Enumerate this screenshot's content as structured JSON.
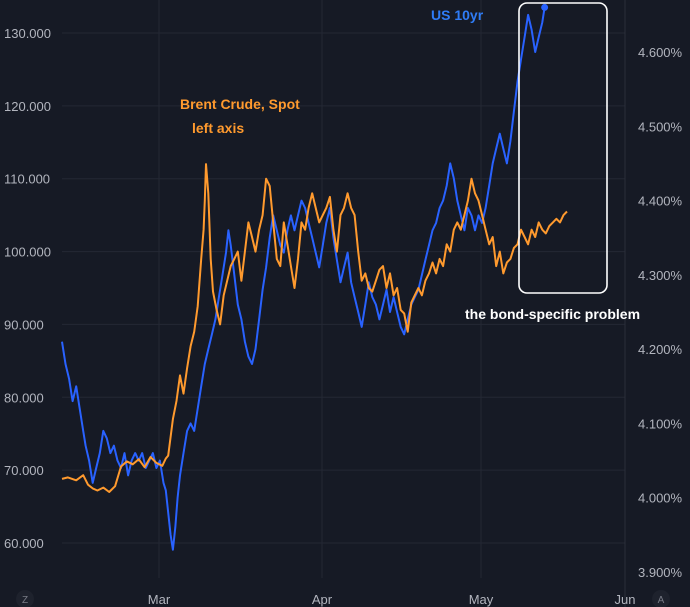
{
  "chart_data": {
    "type": "line",
    "x_labels": [
      "Mar",
      "Apr",
      "May",
      "Jun"
    ],
    "y_left": {
      "ticks": [
        "60.000",
        "70.000",
        "80.000",
        "90.000",
        "100.000",
        "110.000",
        "120.000",
        "130.000"
      ],
      "range": [
        57,
        134
      ]
    },
    "y_right": {
      "ticks": [
        "3.900%",
        "4.000%",
        "4.100%",
        "4.200%",
        "4.300%",
        "4.400%",
        "4.500%",
        "4.600%"
      ],
      "range": [
        3.889,
        4.667
      ]
    },
    "series": [
      {
        "name": "Brent Crude, Spot",
        "axis": "left",
        "color": "#ff9a2e",
        "values": [
          [
            0,
            68.8
          ],
          [
            5,
            69.0
          ],
          [
            12,
            68.6
          ],
          [
            18,
            69.3
          ],
          [
            22,
            68.0
          ],
          [
            26,
            67.5
          ],
          [
            30,
            67.2
          ],
          [
            35,
            67.6
          ],
          [
            40,
            67.0
          ],
          [
            45,
            67.8
          ],
          [
            50,
            70.5
          ],
          [
            55,
            71.2
          ],
          [
            60,
            70.8
          ],
          [
            65,
            71.5
          ],
          [
            70,
            70.4
          ],
          [
            75,
            71.8
          ],
          [
            80,
            71.0
          ],
          [
            85,
            70.6
          ],
          [
            88,
            71.6
          ],
          [
            90,
            72.0
          ],
          [
            94,
            77.0
          ],
          [
            97,
            79.5
          ],
          [
            100,
            83.0
          ],
          [
            103,
            80.5
          ],
          [
            106,
            84.0
          ],
          [
            109,
            87.0
          ],
          [
            112,
            89.0
          ],
          [
            115,
            92.5
          ],
          [
            118,
            99.0
          ],
          [
            120,
            103.0
          ],
          [
            121,
            107.0
          ],
          [
            122,
            112.0
          ],
          [
            124,
            108.0
          ],
          [
            126,
            99.0
          ],
          [
            128,
            94.5
          ],
          [
            131,
            92.0
          ],
          [
            134,
            90.0
          ],
          [
            137,
            94.0
          ],
          [
            140,
            96.0
          ],
          [
            143,
            98.0
          ],
          [
            146,
            99.0
          ],
          [
            149,
            100.0
          ],
          [
            152,
            96.0
          ],
          [
            155,
            100.0
          ],
          [
            158,
            104.0
          ],
          [
            161,
            102.0
          ],
          [
            164,
            100.0
          ],
          [
            167,
            103.0
          ],
          [
            170,
            105.0
          ],
          [
            173,
            110.0
          ],
          [
            176,
            109.0
          ],
          [
            179,
            104.0
          ],
          [
            182,
            99.0
          ],
          [
            185,
            98.0
          ],
          [
            188,
            104.0
          ],
          [
            191,
            101.0
          ],
          [
            194,
            98.0
          ],
          [
            197,
            95.0
          ],
          [
            200,
            99.0
          ],
          [
            203,
            104.0
          ],
          [
            206,
            103.0
          ],
          [
            209,
            106.0
          ],
          [
            212,
            108.0
          ],
          [
            215,
            106.0
          ],
          [
            218,
            104.0
          ],
          [
            221,
            105.0
          ],
          [
            224,
            106.0
          ],
          [
            227,
            107.5
          ],
          [
            230,
            103.0
          ],
          [
            233,
            100.0
          ],
          [
            236,
            105.0
          ],
          [
            239,
            106.0
          ],
          [
            242,
            108.0
          ],
          [
            245,
            106.0
          ],
          [
            248,
            105.0
          ],
          [
            251,
            100.0
          ],
          [
            254,
            96.0
          ],
          [
            257,
            97.0
          ],
          [
            260,
            95.0
          ],
          [
            263,
            94.5
          ],
          [
            266,
            96.0
          ],
          [
            269,
            97.5
          ],
          [
            272,
            98.0
          ],
          [
            275,
            95.0
          ],
          [
            278,
            97.0
          ],
          [
            281,
            94.0
          ],
          [
            284,
            95.0
          ],
          [
            287,
            92.0
          ],
          [
            290,
            91.5
          ],
          [
            293,
            89.0
          ],
          [
            296,
            93.0
          ],
          [
            299,
            94.0
          ],
          [
            302,
            95.0
          ],
          [
            305,
            94.0
          ],
          [
            308,
            96.0
          ],
          [
            311,
            97.0
          ],
          [
            314,
            98.5
          ],
          [
            317,
            97.0
          ],
          [
            320,
            99.0
          ],
          [
            323,
            98.0
          ],
          [
            326,
            101.0
          ],
          [
            329,
            100.0
          ],
          [
            332,
            103.0
          ],
          [
            335,
            104.0
          ],
          [
            338,
            103.0
          ],
          [
            341,
            105.0
          ],
          [
            344,
            107.0
          ],
          [
            347,
            110.0
          ],
          [
            350,
            108.0
          ],
          [
            353,
            107.0
          ],
          [
            356,
            105.0
          ],
          [
            359,
            103.0
          ],
          [
            362,
            101.0
          ],
          [
            365,
            102.0
          ],
          [
            368,
            98.0
          ],
          [
            371,
            100.0
          ],
          [
            374,
            97.0
          ],
          [
            377,
            98.5
          ],
          [
            380,
            99.0
          ],
          [
            383,
            100.5
          ],
          [
            386,
            101.0
          ],
          [
            389,
            103.0
          ],
          [
            392,
            102.0
          ],
          [
            395,
            101.0
          ],
          [
            398,
            103.0
          ],
          [
            401,
            102.0
          ],
          [
            404,
            104.0
          ],
          [
            407,
            103.0
          ],
          [
            410,
            102.5
          ],
          [
            413,
            103.5
          ],
          [
            416,
            104.0
          ],
          [
            419,
            104.5
          ],
          [
            422,
            104.0
          ],
          [
            425,
            105.0
          ],
          [
            428,
            105.5
          ]
        ]
      },
      {
        "name": "US 10yr",
        "axis": "right",
        "color": "#2962ff",
        "values": [
          [
            0,
            4.21
          ],
          [
            3,
            4.18
          ],
          [
            6,
            4.16
          ],
          [
            9,
            4.13
          ],
          [
            12,
            4.15
          ],
          [
            15,
            4.12
          ],
          [
            18,
            4.09
          ],
          [
            20,
            4.07
          ],
          [
            23,
            4.05
          ],
          [
            26,
            4.02
          ],
          [
            29,
            4.04
          ],
          [
            32,
            4.06
          ],
          [
            35,
            4.09
          ],
          [
            38,
            4.08
          ],
          [
            41,
            4.06
          ],
          [
            44,
            4.07
          ],
          [
            47,
            4.05
          ],
          [
            50,
            4.04
          ],
          [
            53,
            4.06
          ],
          [
            56,
            4.03
          ],
          [
            59,
            4.05
          ],
          [
            62,
            4.06
          ],
          [
            65,
            4.05
          ],
          [
            68,
            4.06
          ],
          [
            71,
            4.04
          ],
          [
            74,
            4.05
          ],
          [
            77,
            4.06
          ],
          [
            80,
            4.04
          ],
          [
            83,
            4.05
          ],
          [
            86,
            4.02
          ],
          [
            88,
            4.01
          ],
          [
            90,
            3.98
          ],
          [
            92,
            3.95
          ],
          [
            94,
            3.93
          ],
          [
            96,
            3.96
          ],
          [
            98,
            4.0
          ],
          [
            100,
            4.03
          ],
          [
            103,
            4.06
          ],
          [
            106,
            4.09
          ],
          [
            109,
            4.1
          ],
          [
            112,
            4.09
          ],
          [
            115,
            4.12
          ],
          [
            118,
            4.15
          ],
          [
            121,
            4.18
          ],
          [
            124,
            4.2
          ],
          [
            127,
            4.22
          ],
          [
            130,
            4.24
          ],
          [
            133,
            4.27
          ],
          [
            136,
            4.3
          ],
          [
            139,
            4.33
          ],
          [
            141,
            4.36
          ],
          [
            143,
            4.34
          ],
          [
            146,
            4.3
          ],
          [
            149,
            4.26
          ],
          [
            152,
            4.24
          ],
          [
            155,
            4.21
          ],
          [
            158,
            4.19
          ],
          [
            161,
            4.18
          ],
          [
            164,
            4.2
          ],
          [
            167,
            4.24
          ],
          [
            170,
            4.28
          ],
          [
            173,
            4.31
          ],
          [
            176,
            4.35
          ],
          [
            179,
            4.38
          ],
          [
            182,
            4.36
          ],
          [
            185,
            4.34
          ],
          [
            188,
            4.33
          ],
          [
            191,
            4.36
          ],
          [
            194,
            4.38
          ],
          [
            197,
            4.36
          ],
          [
            200,
            4.38
          ],
          [
            203,
            4.4
          ],
          [
            206,
            4.39
          ],
          [
            209,
            4.37
          ],
          [
            212,
            4.35
          ],
          [
            215,
            4.33
          ],
          [
            218,
            4.31
          ],
          [
            221,
            4.34
          ],
          [
            224,
            4.37
          ],
          [
            227,
            4.39
          ],
          [
            230,
            4.35
          ],
          [
            233,
            4.32
          ],
          [
            236,
            4.29
          ],
          [
            239,
            4.31
          ],
          [
            242,
            4.33
          ],
          [
            245,
            4.29
          ],
          [
            248,
            4.27
          ],
          [
            251,
            4.25
          ],
          [
            254,
            4.23
          ],
          [
            257,
            4.26
          ],
          [
            260,
            4.29
          ],
          [
            263,
            4.27
          ],
          [
            266,
            4.26
          ],
          [
            269,
            4.24
          ],
          [
            272,
            4.26
          ],
          [
            275,
            4.28
          ],
          [
            278,
            4.25
          ],
          [
            281,
            4.27
          ],
          [
            284,
            4.25
          ],
          [
            287,
            4.23
          ],
          [
            290,
            4.22
          ],
          [
            293,
            4.24
          ],
          [
            296,
            4.26
          ],
          [
            299,
            4.27
          ],
          [
            302,
            4.28
          ],
          [
            305,
            4.3
          ],
          [
            308,
            4.32
          ],
          [
            311,
            4.34
          ],
          [
            314,
            4.36
          ],
          [
            317,
            4.37
          ],
          [
            320,
            4.39
          ],
          [
            323,
            4.4
          ],
          [
            326,
            4.42
          ],
          [
            329,
            4.45
          ],
          [
            332,
            4.43
          ],
          [
            335,
            4.4
          ],
          [
            338,
            4.38
          ],
          [
            341,
            4.36
          ],
          [
            344,
            4.39
          ],
          [
            347,
            4.38
          ],
          [
            350,
            4.36
          ],
          [
            353,
            4.38
          ],
          [
            356,
            4.37
          ],
          [
            359,
            4.39
          ],
          [
            362,
            4.42
          ],
          [
            365,
            4.45
          ],
          [
            368,
            4.47
          ],
          [
            371,
            4.49
          ],
          [
            374,
            4.47
          ],
          [
            377,
            4.45
          ],
          [
            380,
            4.48
          ],
          [
            383,
            4.52
          ],
          [
            386,
            4.56
          ],
          [
            389,
            4.59
          ],
          [
            392,
            4.62
          ],
          [
            395,
            4.65
          ],
          [
            398,
            4.63
          ],
          [
            401,
            4.6
          ],
          [
            404,
            4.62
          ],
          [
            407,
            4.64
          ],
          [
            409,
            4.66
          ]
        ]
      }
    ],
    "annotations": {
      "brent_label": "Brent Crude, Spot",
      "brent_sublabel": "left axis",
      "us10yr_label": "US 10yr",
      "callout": "the bond-specific problem"
    },
    "grid": true
  },
  "axis_buttons": {
    "left": "Z",
    "right": "A"
  }
}
